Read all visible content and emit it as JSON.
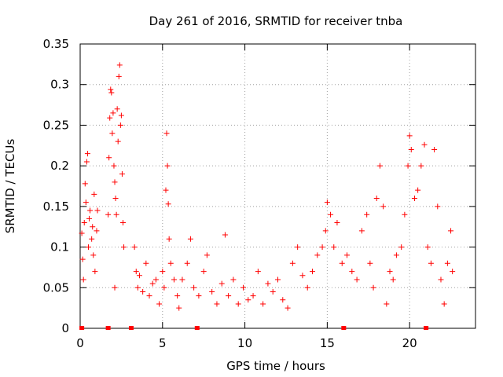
{
  "chart_data": {
    "type": "scatter",
    "title": "Day 261 of 2016, SRMTID for receiver tnba",
    "xlabel": "GPS time / hours",
    "ylabel": "SRMTID / TECUs",
    "xlim": [
      0,
      24
    ],
    "ylim": [
      0,
      0.35
    ],
    "x_ticks": [
      0,
      5,
      10,
      15,
      20
    ],
    "x_tick_labels": [
      "0",
      "5",
      "10",
      "15",
      "20"
    ],
    "y_ticks": [
      0,
      0.05,
      0.1,
      0.15,
      0.2,
      0.25,
      0.3,
      0.35
    ],
    "y_tick_labels": [
      "0",
      "0.05",
      "0.1",
      "0.15",
      "0.2",
      "0.25",
      "0.3",
      "0.35"
    ],
    "grid": true,
    "marker": "plus",
    "color": "#ff0000",
    "series": [
      {
        "name": "SRMTID",
        "points": [
          [
            0.1,
            0.117
          ],
          [
            0.15,
            0.085
          ],
          [
            0.2,
            0.06
          ],
          [
            0.25,
            0.13
          ],
          [
            0.3,
            0.178
          ],
          [
            0.35,
            0.155
          ],
          [
            0.4,
            0.205
          ],
          [
            0.45,
            0.215
          ],
          [
            0.5,
            0.1
          ],
          [
            0.55,
            0.135
          ],
          [
            0.6,
            0.145
          ],
          [
            0.7,
            0.11
          ],
          [
            0.75,
            0.125
          ],
          [
            0.8,
            0.09
          ],
          [
            0.85,
            0.165
          ],
          [
            0.9,
            0.07
          ],
          [
            1.0,
            0.12
          ],
          [
            1.05,
            0.145
          ],
          [
            1.7,
            0.14
          ],
          [
            1.75,
            0.21
          ],
          [
            1.8,
            0.259
          ],
          [
            1.85,
            0.294
          ],
          [
            1.9,
            0.29
          ],
          [
            1.95,
            0.24
          ],
          [
            2.0,
            0.265
          ],
          [
            2.05,
            0.2
          ],
          [
            2.1,
            0.18
          ],
          [
            2.15,
            0.16
          ],
          [
            2.2,
            0.14
          ],
          [
            2.25,
            0.27
          ],
          [
            2.3,
            0.23
          ],
          [
            2.35,
            0.31
          ],
          [
            2.4,
            0.324
          ],
          [
            2.45,
            0.25
          ],
          [
            2.5,
            0.262
          ],
          [
            2.55,
            0.19
          ],
          [
            2.6,
            0.13
          ],
          [
            2.65,
            0.1
          ],
          [
            2.1,
            0.05
          ],
          [
            3.3,
            0.1
          ],
          [
            3.4,
            0.07
          ],
          [
            3.5,
            0.05
          ],
          [
            3.6,
            0.065
          ],
          [
            3.8,
            0.045
          ],
          [
            4.0,
            0.08
          ],
          [
            4.2,
            0.04
          ],
          [
            4.4,
            0.055
          ],
          [
            4.6,
            0.06
          ],
          [
            4.8,
            0.03
          ],
          [
            5.0,
            0.07
          ],
          [
            5.1,
            0.05
          ],
          [
            5.2,
            0.17
          ],
          [
            5.25,
            0.24
          ],
          [
            5.3,
            0.2
          ],
          [
            5.35,
            0.153
          ],
          [
            5.4,
            0.11
          ],
          [
            5.5,
            0.08
          ],
          [
            5.7,
            0.06
          ],
          [
            5.9,
            0.04
          ],
          [
            6.0,
            0.025
          ],
          [
            6.2,
            0.06
          ],
          [
            6.5,
            0.08
          ],
          [
            6.7,
            0.11
          ],
          [
            6.9,
            0.05
          ],
          [
            7.2,
            0.04
          ],
          [
            7.5,
            0.07
          ],
          [
            7.7,
            0.09
          ],
          [
            8.0,
            0.045
          ],
          [
            8.3,
            0.03
          ],
          [
            8.6,
            0.055
          ],
          [
            8.8,
            0.115
          ],
          [
            9.0,
            0.04
          ],
          [
            9.3,
            0.06
          ],
          [
            9.6,
            0.03
          ],
          [
            9.9,
            0.05
          ],
          [
            10.2,
            0.035
          ],
          [
            10.5,
            0.04
          ],
          [
            10.8,
            0.07
          ],
          [
            11.1,
            0.03
          ],
          [
            11.4,
            0.055
          ],
          [
            11.7,
            0.045
          ],
          [
            12.0,
            0.06
          ],
          [
            12.3,
            0.035
          ],
          [
            12.6,
            0.025
          ],
          [
            12.9,
            0.08
          ],
          [
            13.2,
            0.1
          ],
          [
            13.5,
            0.065
          ],
          [
            13.8,
            0.05
          ],
          [
            14.1,
            0.07
          ],
          [
            14.4,
            0.09
          ],
          [
            14.7,
            0.1
          ],
          [
            14.9,
            0.12
          ],
          [
            15.0,
            0.155
          ],
          [
            15.2,
            0.14
          ],
          [
            15.4,
            0.1
          ],
          [
            15.6,
            0.13
          ],
          [
            15.9,
            0.08
          ],
          [
            16.2,
            0.09
          ],
          [
            16.5,
            0.07
          ],
          [
            16.8,
            0.06
          ],
          [
            17.1,
            0.12
          ],
          [
            17.4,
            0.14
          ],
          [
            17.6,
            0.08
          ],
          [
            17.8,
            0.05
          ],
          [
            18.0,
            0.16
          ],
          [
            18.2,
            0.2
          ],
          [
            18.4,
            0.15
          ],
          [
            18.6,
            0.03
          ],
          [
            18.8,
            0.07
          ],
          [
            19.0,
            0.06
          ],
          [
            19.2,
            0.09
          ],
          [
            19.5,
            0.1
          ],
          [
            19.7,
            0.14
          ],
          [
            19.9,
            0.2
          ],
          [
            20.0,
            0.237
          ],
          [
            20.1,
            0.22
          ],
          [
            20.3,
            0.16
          ],
          [
            20.5,
            0.17
          ],
          [
            20.7,
            0.2
          ],
          [
            20.9,
            0.226
          ],
          [
            21.1,
            0.1
          ],
          [
            21.3,
            0.08
          ],
          [
            21.5,
            0.22
          ],
          [
            21.7,
            0.15
          ],
          [
            21.9,
            0.06
          ],
          [
            22.1,
            0.03
          ],
          [
            22.3,
            0.08
          ],
          [
            22.5,
            0.12
          ],
          [
            22.6,
            0.07
          ]
        ]
      }
    ],
    "x_axis_marks": [
      0.1,
      1.7,
      3.1,
      7.1,
      16.0,
      21.0
    ]
  }
}
